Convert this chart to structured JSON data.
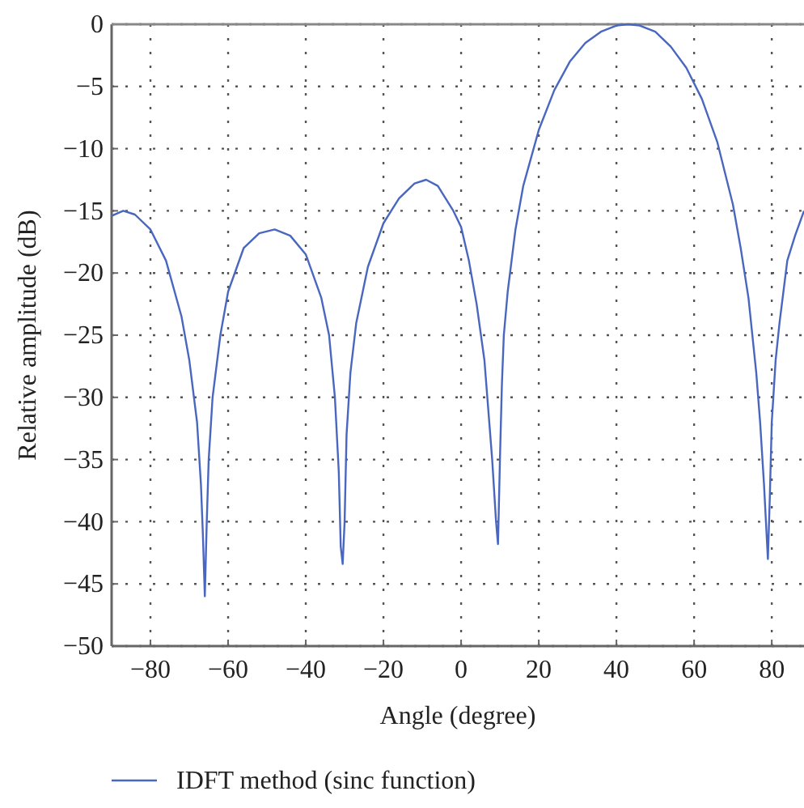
{
  "chart_data": {
    "type": "line",
    "xlabel": "Angle (degree)",
    "ylabel": "Relative amplitude (dB)",
    "xlim": [
      -90,
      88.3
    ],
    "xticks": [
      -80,
      -60,
      -40,
      -20,
      0,
      20,
      40,
      60,
      80
    ],
    "ylim": [
      -50,
      0
    ],
    "yticks": [
      -50,
      -45,
      -40,
      -35,
      -30,
      -25,
      -20,
      -15,
      -10,
      -5,
      0
    ],
    "grid": true,
    "legend": "bottom",
    "line_style": "solid",
    "marker": "none",
    "series": [
      {
        "name": "IDFT method (sinc function)",
        "color": "#4a67c0",
        "x": [
          -90,
          -87,
          -84,
          -80,
          -76,
          -72,
          -70,
          -68,
          -67,
          -66.5,
          -66,
          -65.5,
          -65,
          -64,
          -62,
          -60,
          -56,
          -52,
          -48,
          -44,
          -40,
          -36,
          -34,
          -32.5,
          -31.5,
          -31,
          -30.5,
          -30,
          -29.5,
          -28.5,
          -27,
          -24,
          -20,
          -16,
          -12,
          -9,
          -6,
          -2,
          0,
          2,
          4,
          6,
          7,
          8,
          9,
          9.5,
          10,
          10.5,
          11,
          12,
          14,
          16,
          20,
          24,
          28,
          32,
          36,
          40,
          43,
          46,
          50,
          54,
          58,
          62,
          66,
          70,
          72,
          74,
          76,
          77,
          78,
          78.5,
          79,
          79.5,
          80,
          81,
          82,
          84,
          86,
          88.3
        ],
        "values": [
          -15.4,
          -15,
          -15.3,
          -16.5,
          -19,
          -23.5,
          -27,
          -32,
          -37,
          -41,
          -46,
          -40,
          -35,
          -30,
          -25,
          -21.5,
          -18,
          -16.8,
          -16.5,
          -17,
          -18.5,
          -22,
          -25,
          -30,
          -36,
          -42,
          -43.4,
          -40,
          -33,
          -28,
          -24,
          -19.5,
          -16,
          -14,
          -12.8,
          -12.5,
          -13,
          -15,
          -16.3,
          -19,
          -22.5,
          -27,
          -31,
          -35,
          -40,
          -41.8,
          -35,
          -29,
          -25,
          -21.5,
          -16.5,
          -13,
          -8.5,
          -5.3,
          -3,
          -1.5,
          -0.6,
          -0.1,
          0,
          -0.1,
          -0.6,
          -1.8,
          -3.5,
          -6,
          -9.5,
          -14.5,
          -18,
          -22,
          -28,
          -32,
          -37,
          -40,
          -43,
          -38,
          -32,
          -27,
          -24,
          -19,
          -17,
          -15
        ]
      }
    ]
  }
}
